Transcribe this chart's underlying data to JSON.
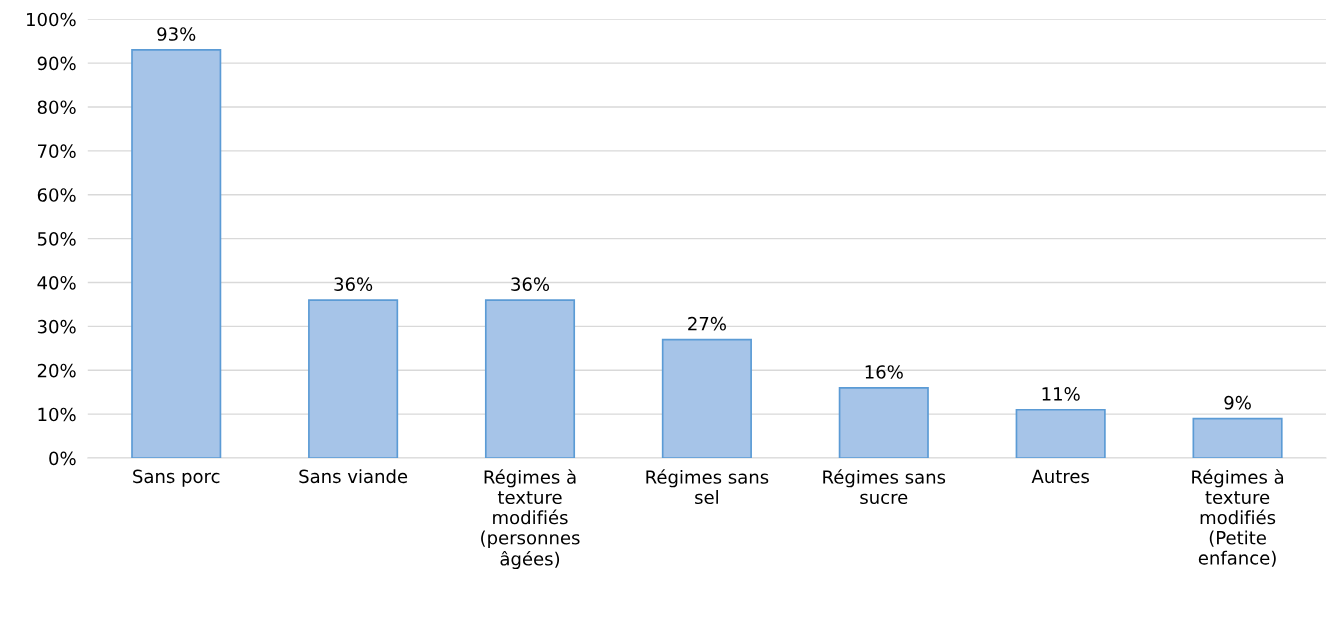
{
  "chart_data": {
    "type": "bar",
    "categories": [
      "Sans porc",
      "Sans viande",
      "Régimes à\ntexture\nmodifiés\n(personnes\nâgées)",
      "Régimes sans\nsel",
      "Régimes sans\nsucre",
      "Autres",
      "Régimes à\ntexture\nmodifiés\n(Petite\nenfance)"
    ],
    "values": [
      93,
      36,
      36,
      27,
      16,
      11,
      9
    ],
    "value_labels": [
      "93%",
      "36%",
      "36%",
      "27%",
      "16%",
      "11%",
      "9%"
    ],
    "color": "#a6c4e8",
    "ylim": [
      0,
      100
    ],
    "yticks": [
      {
        "value": 0,
        "label": "0%"
      },
      {
        "value": 10,
        "label": "10%"
      },
      {
        "value": 20,
        "label": "20%"
      },
      {
        "value": 30,
        "label": "30%"
      },
      {
        "value": 40,
        "label": "40%"
      },
      {
        "value": 50,
        "label": "50%"
      },
      {
        "value": 60,
        "label": "60%"
      },
      {
        "value": 70,
        "label": "70%"
      },
      {
        "value": 80,
        "label": "80%"
      },
      {
        "value": 90,
        "label": "90%"
      },
      {
        "value": 100,
        "label": "100%"
      }
    ],
    "grid": "y"
  }
}
